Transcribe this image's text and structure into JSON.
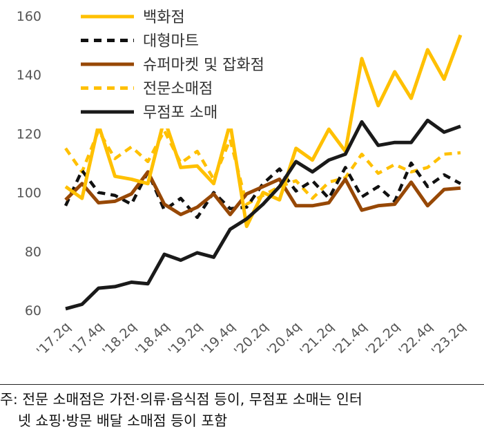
{
  "chart_data": {
    "type": "line",
    "ylim": [
      60,
      160
    ],
    "yticks": [
      60,
      80,
      100,
      120,
      140,
      160
    ],
    "x_tick_labels": [
      "'17.2q",
      "'17.4q",
      "'18.2q",
      "'18.4q",
      "'19.2q",
      "'19.4q",
      "'20.2q",
      "'20.4q",
      "'21.2q",
      "'21.4q",
      "'22.2q",
      "'22.4q",
      "'23.2q"
    ],
    "x": [
      "'17.2q",
      "'17.3q",
      "'17.4q",
      "'18.1q",
      "'18.2q",
      "'18.3q",
      "'18.4q",
      "'19.1q",
      "'19.2q",
      "'19.3q",
      "'19.4q",
      "'20.1q",
      "'20.2q",
      "'20.3q",
      "'20.4q",
      "'21.1q",
      "'21.2q",
      "'21.3q",
      "'21.4q",
      "'22.1q",
      "'22.2q",
      "'22.3q",
      "'22.4q",
      "'23.1q",
      "'23.2q"
    ],
    "series": [
      {
        "name": "백화점",
        "color": "#FFC000",
        "style": "solid",
        "values": [
          102,
          98,
          123,
          105.5,
          104.5,
          103,
          125,
          108.5,
          109,
          103,
          123.5,
          88.5,
          100,
          97.5,
          115,
          111,
          121.5,
          114,
          145.5,
          129.5,
          141,
          132,
          148.5,
          138.5,
          153.5
        ]
      },
      {
        "name": "대형마트",
        "color": "#111111",
        "style": "dashed",
        "values": [
          95.5,
          107.5,
          100,
          99,
          96,
          107,
          94,
          98,
          91.5,
          100,
          94.5,
          95,
          103,
          108,
          100.5,
          104,
          98,
          108.5,
          98.5,
          102,
          97,
          110,
          102,
          106,
          103
        ]
      },
      {
        "name": "슈퍼마켓 및 잡화점",
        "color": "#974806",
        "style": "solid",
        "values": [
          97.5,
          103,
          96.5,
          97,
          99.5,
          107,
          96,
          92.5,
          95,
          99.5,
          92.5,
          99.5,
          102,
          104.5,
          95.5,
          95.5,
          96.5,
          104.5,
          94,
          95.5,
          96,
          103.5,
          95.5,
          101,
          101.5
        ]
      },
      {
        "name": "전문소매점",
        "color": "#FFC000",
        "style": "dashed",
        "values": [
          115,
          107,
          121,
          111.5,
          115.5,
          110.5,
          121,
          110,
          114,
          104.5,
          118,
          96,
          99,
          102,
          104,
          98,
          103.5,
          105,
          113,
          106.5,
          109.5,
          107,
          108.5,
          113,
          113.5
        ]
      },
      {
        "name": "무점포 소매",
        "color": "#1a1a1a",
        "style": "solid",
        "values": [
          60.5,
          62,
          67.5,
          68,
          69.5,
          69,
          79,
          77,
          79.5,
          78,
          87.5,
          91,
          96,
          102,
          110.5,
          107,
          111,
          113,
          124,
          116,
          117,
          117,
          124.5,
          120.5,
          122.5
        ]
      }
    ]
  },
  "footnote": {
    "line1": "주: 전문 소매점은 가전·의류·음식점 등이, 무점포 소매는 인터",
    "line2": "넷 쇼핑·방문 배달 소매점 등이 포함"
  }
}
